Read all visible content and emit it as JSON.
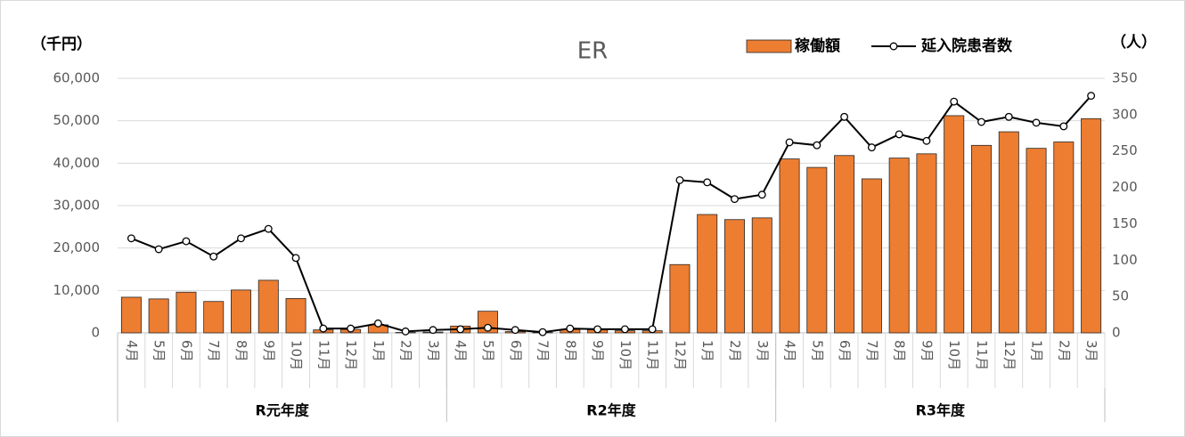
{
  "chart_data": {
    "type": "bar_line",
    "title": "ER",
    "y_label": "（千円）",
    "y2_label": "（人）",
    "categories": [
      "4月",
      "5月",
      "6月",
      "7月",
      "8月",
      "9月",
      "10月",
      "11月",
      "12月",
      "1月",
      "2月",
      "3月",
      "4月",
      "5月",
      "6月",
      "7月",
      "8月",
      "9月",
      "10月",
      "11月",
      "12月",
      "1月",
      "2月",
      "3月",
      "4月",
      "5月",
      "6月",
      "7月",
      "8月",
      "9月",
      "10月",
      "11月",
      "12月",
      "1月",
      "2月",
      "3月"
    ],
    "groups": [
      "R元年度",
      "R2年度",
      "R3年度"
    ],
    "series": [
      {
        "name": "稼働額",
        "type": "bar",
        "color": "#ED7D31",
        "values": [
          8400,
          8000,
          9600,
          7400,
          10100,
          12400,
          8100,
          700,
          800,
          1900,
          100,
          200,
          1600,
          5100,
          300,
          100,
          800,
          700,
          500,
          500,
          16100,
          27900,
          26700,
          27100,
          41000,
          39000,
          41800,
          36300,
          41200,
          42200,
          51200,
          44200,
          47400,
          43500,
          45000,
          50500
        ]
      },
      {
        "name": "延入院患者数",
        "type": "line",
        "axis": "y2",
        "color": "#000000",
        "values": [
          130,
          115,
          126,
          105,
          130,
          143,
          103,
          6,
          6,
          13,
          2,
          4,
          5,
          7,
          4,
          1,
          6,
          5,
          5,
          5,
          210,
          207,
          184,
          190,
          262,
          258,
          297,
          255,
          273,
          264,
          318,
          290,
          297,
          289,
          284,
          326
        ]
      }
    ],
    "ylim": [
      0,
      60000
    ],
    "yticks": [
      0,
      {
        "value": 10000,
        "label": "10,000"
      },
      {
        "value": 20000,
        "label": "20,000"
      },
      {
        "value": 30000,
        "label": "30,000"
      },
      {
        "value": 40000,
        "label": "40,000"
      },
      {
        "value": 50000,
        "label": "50,000"
      },
      {
        "value": 60000,
        "label": "60,000"
      }
    ],
    "y2lim": [
      0,
      350
    ],
    "y2ticks": [
      0,
      50,
      100,
      150,
      200,
      250,
      300,
      350
    ],
    "grid": true,
    "legend": "top-right"
  }
}
